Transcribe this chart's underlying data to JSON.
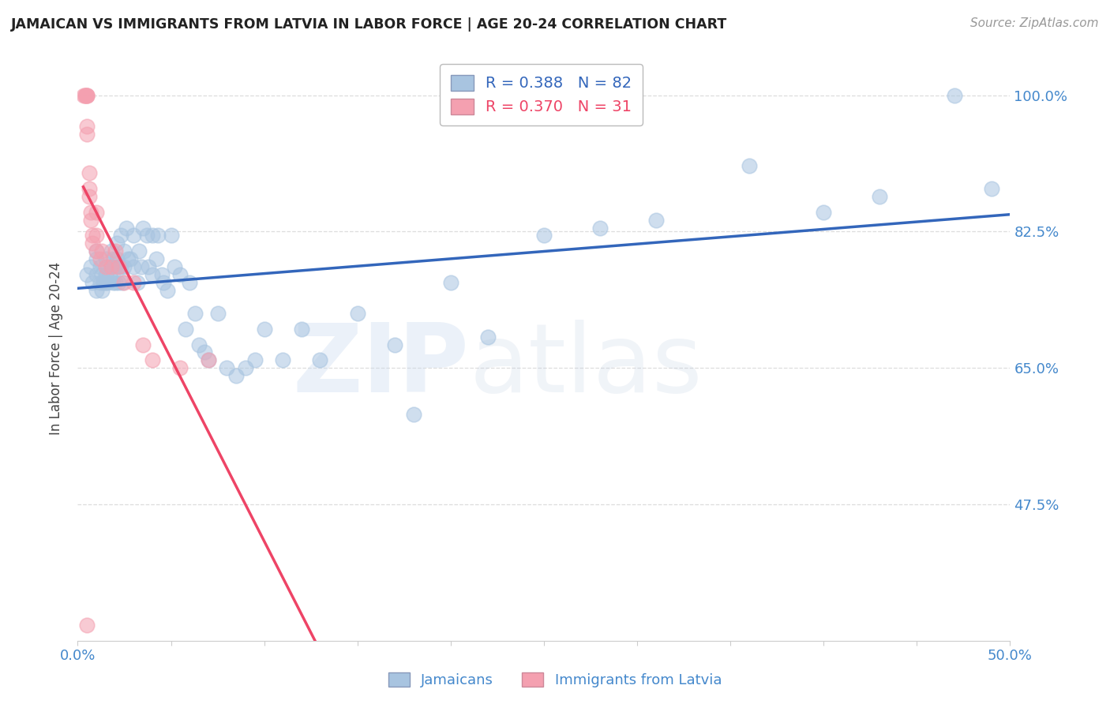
{
  "title": "JAMAICAN VS IMMIGRANTS FROM LATVIA IN LABOR FORCE | AGE 20-24 CORRELATION CHART",
  "source": "Source: ZipAtlas.com",
  "xlabel": "",
  "ylabel": "In Labor Force | Age 20-24",
  "xlim": [
    0.0,
    0.5
  ],
  "ylim": [
    0.3,
    1.05
  ],
  "xtick_positions": [
    0.0,
    0.05,
    0.1,
    0.15,
    0.2,
    0.25,
    0.3,
    0.35,
    0.4,
    0.45,
    0.5
  ],
  "xtick_labels": [
    "0.0%",
    "",
    "",
    "",
    "",
    "",
    "",
    "",
    "",
    "",
    "50.0%"
  ],
  "ytick_positions": [
    0.475,
    0.65,
    0.825,
    1.0
  ],
  "ytick_labels": [
    "47.5%",
    "65.0%",
    "82.5%",
    "100.0%"
  ],
  "blue_color": "#A8C4E0",
  "pink_color": "#F4A0B0",
  "trend_blue": "#3366BB",
  "trend_pink": "#EE4466",
  "r_blue": 0.388,
  "n_blue": 82,
  "r_pink": 0.37,
  "n_pink": 31,
  "legend_label_blue": "Jamaicans",
  "legend_label_pink": "Immigrants from Latvia",
  "watermark_zip": "ZIP",
  "watermark_atlas": "atlas",
  "background_color": "#ffffff",
  "title_color": "#222222",
  "axis_label_color": "#4488CC",
  "source_color": "#999999",
  "grid_color": "#DDDDDD",
  "blue_scatter_x": [
    0.005,
    0.007,
    0.008,
    0.01,
    0.01,
    0.01,
    0.01,
    0.012,
    0.012,
    0.013,
    0.013,
    0.014,
    0.015,
    0.015,
    0.015,
    0.016,
    0.016,
    0.017,
    0.018,
    0.018,
    0.019,
    0.019,
    0.02,
    0.02,
    0.021,
    0.021,
    0.022,
    0.022,
    0.023,
    0.023,
    0.024,
    0.025,
    0.025,
    0.026,
    0.027,
    0.028,
    0.03,
    0.03,
    0.032,
    0.033,
    0.034,
    0.035,
    0.037,
    0.038,
    0.04,
    0.04,
    0.042,
    0.043,
    0.045,
    0.046,
    0.048,
    0.05,
    0.052,
    0.055,
    0.058,
    0.06,
    0.063,
    0.065,
    0.068,
    0.07,
    0.075,
    0.08,
    0.085,
    0.09,
    0.095,
    0.1,
    0.11,
    0.12,
    0.13,
    0.15,
    0.17,
    0.18,
    0.2,
    0.22,
    0.25,
    0.28,
    0.31,
    0.36,
    0.4,
    0.43,
    0.47,
    0.49
  ],
  "blue_scatter_y": [
    0.77,
    0.78,
    0.76,
    0.79,
    0.8,
    0.77,
    0.75,
    0.78,
    0.76,
    0.77,
    0.75,
    0.76,
    0.79,
    0.77,
    0.76,
    0.78,
    0.76,
    0.77,
    0.8,
    0.78,
    0.76,
    0.79,
    0.78,
    0.76,
    0.79,
    0.81,
    0.78,
    0.76,
    0.82,
    0.78,
    0.76,
    0.8,
    0.78,
    0.83,
    0.79,
    0.79,
    0.82,
    0.78,
    0.76,
    0.8,
    0.78,
    0.83,
    0.82,
    0.78,
    0.82,
    0.77,
    0.79,
    0.82,
    0.77,
    0.76,
    0.75,
    0.82,
    0.78,
    0.77,
    0.7,
    0.76,
    0.72,
    0.68,
    0.67,
    0.66,
    0.72,
    0.65,
    0.64,
    0.65,
    0.66,
    0.7,
    0.66,
    0.7,
    0.66,
    0.72,
    0.68,
    0.59,
    0.76,
    0.69,
    0.82,
    0.83,
    0.84,
    0.91,
    0.85,
    0.87,
    1.0,
    0.88
  ],
  "pink_scatter_x": [
    0.003,
    0.004,
    0.004,
    0.005,
    0.005,
    0.005,
    0.005,
    0.005,
    0.006,
    0.006,
    0.006,
    0.007,
    0.007,
    0.008,
    0.008,
    0.01,
    0.01,
    0.01,
    0.012,
    0.013,
    0.015,
    0.018,
    0.02,
    0.022,
    0.025,
    0.03,
    0.035,
    0.04,
    0.055,
    0.07,
    0.005
  ],
  "pink_scatter_y": [
    1.0,
    1.0,
    1.0,
    1.0,
    1.0,
    1.0,
    0.96,
    0.95,
    0.9,
    0.88,
    0.87,
    0.85,
    0.84,
    0.82,
    0.81,
    0.85,
    0.82,
    0.8,
    0.79,
    0.8,
    0.78,
    0.78,
    0.8,
    0.78,
    0.76,
    0.76,
    0.68,
    0.66,
    0.65,
    0.66,
    0.32
  ],
  "pink_trend_x_start": 0.003,
  "pink_trend_x_end": 0.18,
  "blue_trend_x_start": 0.0,
  "blue_trend_x_end": 0.5
}
